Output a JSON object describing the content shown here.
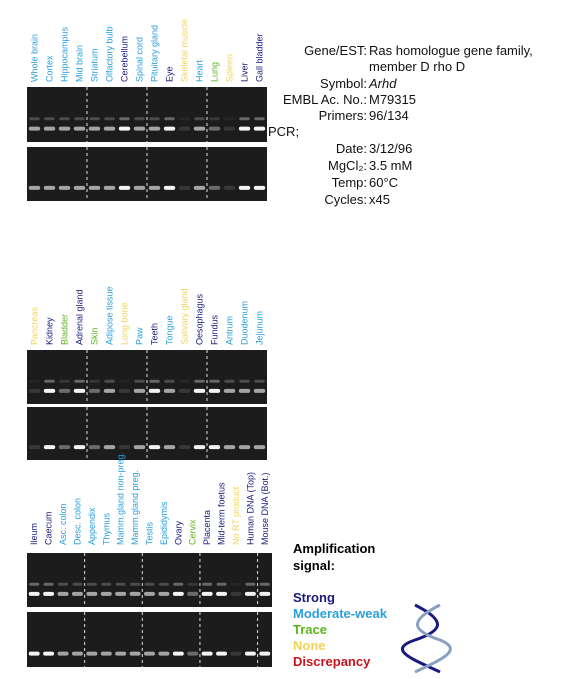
{
  "info": {
    "rows": [
      {
        "label": "Gene/EST:",
        "value": "Ras homologue gene family,",
        "value2": "member D rho D"
      },
      {
        "label": "Symbol:",
        "value": "Arhd"
      },
      {
        "label": "EMBL Ac. No.:",
        "value": "M79315"
      },
      {
        "label": "Primers:",
        "value": "96/134"
      }
    ],
    "pcr_heading": "PCR;",
    "pcr_rows": [
      {
        "label": "Date:",
        "value": "3/12/96"
      },
      {
        "label": "MgCl₂:",
        "value": "3.5 mM"
      },
      {
        "label": "Temp:",
        "value": "60°C"
      },
      {
        "label": "Cycles:",
        "value": "x45"
      }
    ]
  },
  "legend": {
    "title": "Amplification",
    "title2": "signal:",
    "items": [
      {
        "label": "Strong",
        "color": "#1a1a80"
      },
      {
        "label": "Moderate-weak",
        "color": "#2a9fdc"
      },
      {
        "label": "Trace",
        "color": "#5cb51e"
      },
      {
        "label": "None",
        "color": "#f2d35a"
      },
      {
        "label": "Discrepancy",
        "color": "#c8141e"
      }
    ]
  },
  "panels": [
    {
      "lanes": [
        {
          "label": "Whole brain",
          "color": "#2a9fdc"
        },
        {
          "label": "Cortex",
          "color": "#2a9fdc"
        },
        {
          "label": "Hippocampus",
          "color": "#2a9fdc"
        },
        {
          "label": "Mid brain",
          "color": "#2a9fdc"
        },
        {
          "label": "Striatum",
          "color": "#2a9fdc"
        },
        {
          "label": "Olfactory bulb",
          "color": "#2a9fdc"
        },
        {
          "label": "Cerebellum",
          "color": "#1a1a80"
        },
        {
          "label": "Spinal cord",
          "color": "#2a9fdc"
        },
        {
          "label": "Pituitary gland",
          "color": "#2a9fdc"
        },
        {
          "label": "Eye",
          "color": "#1a1a80"
        },
        {
          "label": "Skeletal muscle",
          "color": "#f2d35a"
        },
        {
          "label": "Heart",
          "color": "#2a9fdc"
        },
        {
          "label": "Lung",
          "color": "#5cb51e"
        },
        {
          "label": "Spleen",
          "color": "#f2d35a"
        },
        {
          "label": "Liver",
          "color": "#1a1a80"
        },
        {
          "label": "Gall bladder",
          "color": "#1a1a80"
        }
      ]
    },
    {
      "lanes": [
        {
          "label": "Pancreas",
          "color": "#f2d35a"
        },
        {
          "label": "Kidney",
          "color": "#1a1a80"
        },
        {
          "label": "Bladder",
          "color": "#5cb51e"
        },
        {
          "label": "Adrenal gland",
          "color": "#1a1a80"
        },
        {
          "label": "Skin",
          "color": "#5cb51e"
        },
        {
          "label": "Adipose tissue",
          "color": "#2a9fdc"
        },
        {
          "label": "Long bone",
          "color": "#f2d35a"
        },
        {
          "label": "Paw",
          "color": "#2a9fdc"
        },
        {
          "label": "Teeth",
          "color": "#1a1a80"
        },
        {
          "label": "Tongue",
          "color": "#2a9fdc"
        },
        {
          "label": "Salivary gland",
          "color": "#f2d35a"
        },
        {
          "label": "Oesophagus",
          "color": "#1a1a80"
        },
        {
          "label": "Fundus",
          "color": "#1a1a80"
        },
        {
          "label": "Antrum",
          "color": "#2a9fdc"
        },
        {
          "label": "Duodenum",
          "color": "#2a9fdc"
        },
        {
          "label": "Jejunum",
          "color": "#2a9fdc"
        }
      ]
    },
    {
      "lanes": [
        {
          "label": "Ileum",
          "color": "#1a1a80"
        },
        {
          "label": "Caecum",
          "color": "#1a1a80"
        },
        {
          "label": "Asc. colon",
          "color": "#2a9fdc"
        },
        {
          "label": "Desc. colon",
          "color": "#2a9fdc"
        },
        {
          "label": "Appendix",
          "color": "#2a9fdc"
        },
        {
          "label": "Thymus",
          "color": "#2a9fdc"
        },
        {
          "label": "Mamm.gland non-preg.",
          "color": "#2a9fdc"
        },
        {
          "label": "Mamm.gland preg.",
          "color": "#2a9fdc"
        },
        {
          "label": "Testis",
          "color": "#2a9fdc"
        },
        {
          "label": "Epididymis",
          "color": "#2a9fdc"
        },
        {
          "label": "Ovary",
          "color": "#1a1a80"
        },
        {
          "label": "Cervix",
          "color": "#5cb51e"
        },
        {
          "label": "Placenta",
          "color": "#1a1a80"
        },
        {
          "label": "Mid-term foetus",
          "color": "#1a1a80"
        },
        {
          "label": "No RT product",
          "color": "#f2d35a"
        },
        {
          "label": "Human DNA (Top)",
          "color": "#1a1a80"
        },
        {
          "label": "Mouse DNA (Bot.)",
          "color": "#1a1a80"
        }
      ]
    }
  ]
}
